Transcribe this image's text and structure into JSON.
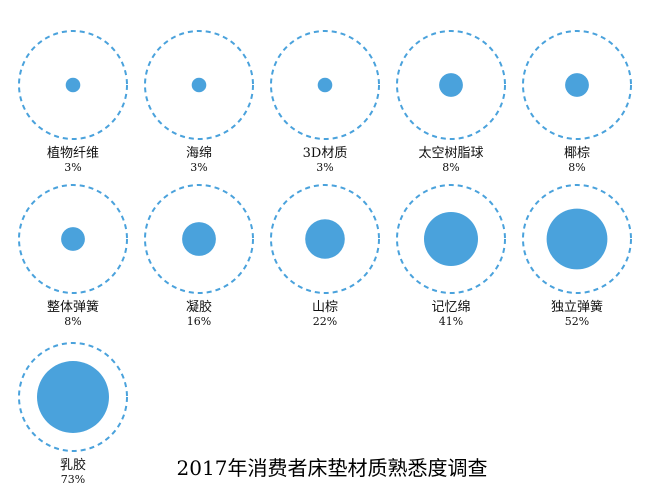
{
  "chart_data": {
    "type": "bubble",
    "title": "2017年消费者床垫材质熟悉度调查",
    "categories": [
      "植物纤维",
      "海绵",
      "3D材质",
      "太空树脂球",
      "椰棕",
      "整体弹簧",
      "凝胶",
      "山棕",
      "记忆绵",
      "独立弹簧",
      "乳胶"
    ],
    "values": [
      3,
      3,
      3,
      8,
      8,
      8,
      16,
      22,
      41,
      52,
      73
    ],
    "value_labels": [
      "3%",
      "3%",
      "3%",
      "8%",
      "8%",
      "8%",
      "16%",
      "22%",
      "41%",
      "52%",
      "73%"
    ],
    "unit": "%",
    "colors": {
      "bubble": "#4aa2dc",
      "ring": "#4aa2dc"
    }
  }
}
